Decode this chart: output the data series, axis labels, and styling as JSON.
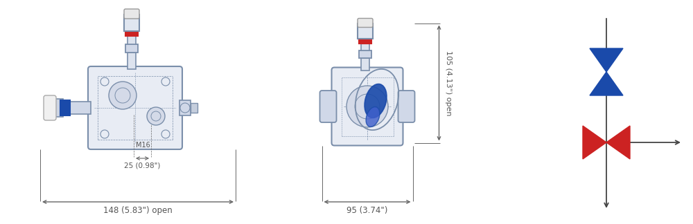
{
  "bg_color": "#ffffff",
  "line_color": "#7a8eaa",
  "dark_line": "#3a4a5c",
  "red_color": "#cc2222",
  "blue_color": "#1a4aaa",
  "dim_color": "#555555",
  "arrow_color": "#666666",
  "body_fill": "#e8ecf4",
  "port_fill": "#d0d8e8",
  "label_148": "148 (5.83\") open",
  "label_95": "95 (3.74\")",
  "label_25": "25 (0.98\")",
  "label_M16": "M16",
  "label_105": "105 (4.13\") open",
  "figsize": [
    10.0,
    3.24
  ],
  "dpi": 100
}
